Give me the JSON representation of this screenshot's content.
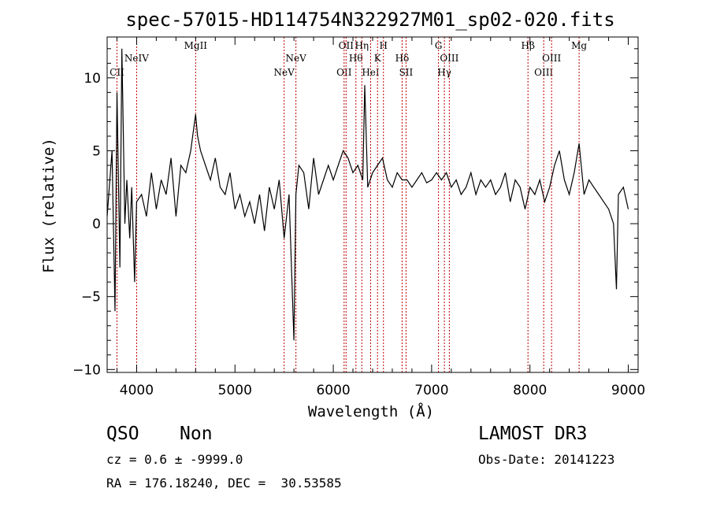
{
  "chart_data": {
    "type": "line",
    "title": "spec-57015-HD114754N322927M01_sp02-020.fits",
    "xlabel": "Wavelength (Å)",
    "ylabel": "Flux (relative)",
    "xlim": [
      3700,
      9100
    ],
    "ylim": [
      -10.2,
      12.8
    ],
    "xticks": [
      4000,
      5000,
      6000,
      7000,
      8000,
      9000
    ],
    "yticks": [
      -10,
      -5,
      0,
      5,
      10
    ],
    "grid": false,
    "series": [
      {
        "name": "spectrum",
        "x": [
          3700,
          3750,
          3780,
          3800,
          3830,
          3850,
          3880,
          3900,
          3930,
          3950,
          3980,
          4000,
          4050,
          4100,
          4150,
          4200,
          4250,
          4300,
          4350,
          4400,
          4450,
          4500,
          4550,
          4600,
          4620,
          4650,
          4700,
          4750,
          4800,
          4850,
          4900,
          4950,
          5000,
          5050,
          5100,
          5150,
          5200,
          5250,
          5300,
          5350,
          5400,
          5450,
          5500,
          5550,
          5600,
          5620,
          5650,
          5700,
          5750,
          5800,
          5850,
          5900,
          5950,
          6000,
          6050,
          6100,
          6150,
          6200,
          6250,
          6300,
          6320,
          6350,
          6400,
          6450,
          6500,
          6550,
          6600,
          6650,
          6700,
          6750,
          6800,
          6850,
          6900,
          6950,
          7000,
          7050,
          7100,
          7150,
          7200,
          7250,
          7300,
          7350,
          7400,
          7450,
          7500,
          7550,
          7600,
          7650,
          7700,
          7750,
          7800,
          7850,
          7900,
          7950,
          8000,
          8050,
          8100,
          8150,
          8200,
          8250,
          8300,
          8350,
          8400,
          8450,
          8500,
          8550,
          8600,
          8650,
          8700,
          8750,
          8800,
          8850,
          8880,
          8900,
          8950,
          9000
        ],
        "y": [
          0.5,
          5.0,
          -6.0,
          9.0,
          -3.0,
          12.0,
          0.0,
          3.0,
          -1.0,
          2.5,
          -4.0,
          1.5,
          2.0,
          0.5,
          3.5,
          1.0,
          3.0,
          2.0,
          4.5,
          0.5,
          4.0,
          3.5,
          5.0,
          7.5,
          6.0,
          5.0,
          4.0,
          3.0,
          4.5,
          2.5,
          2.0,
          3.5,
          1.0,
          2.0,
          0.5,
          1.5,
          0.0,
          2.0,
          -0.5,
          2.5,
          1.0,
          3.0,
          -1.0,
          2.0,
          -8.0,
          2.0,
          4.0,
          3.5,
          1.0,
          4.5,
          2.0,
          3.0,
          4.0,
          3.0,
          4.0,
          5.0,
          4.5,
          3.5,
          4.0,
          3.0,
          9.5,
          2.5,
          3.5,
          4.0,
          4.5,
          3.0,
          2.5,
          3.5,
          3.0,
          3.0,
          2.5,
          3.0,
          3.5,
          2.8,
          3.0,
          3.5,
          3.0,
          3.5,
          2.5,
          3.0,
          2.0,
          2.5,
          3.5,
          2.0,
          3.0,
          2.5,
          3.0,
          2.0,
          2.5,
          3.5,
          1.5,
          3.0,
          2.5,
          1.0,
          2.5,
          2.0,
          3.0,
          1.5,
          2.5,
          4.0,
          5.0,
          3.0,
          2.0,
          3.5,
          5.5,
          2.0,
          3.0,
          2.5,
          2.0,
          1.5,
          1.0,
          0.0,
          -4.5,
          2.0,
          2.5,
          1.0
        ]
      }
    ],
    "lines": [
      {
        "label": "CII",
        "wavelength": 3800,
        "row": 3
      },
      {
        "label": "NeIV",
        "wavelength": 4000,
        "row": 2
      },
      {
        "label": "MgII",
        "wavelength": 4600,
        "row": 1
      },
      {
        "label": "NeV",
        "wavelength": 5500,
        "row": 3
      },
      {
        "label": "NeV",
        "wavelength": 5620,
        "row": 2
      },
      {
        "label": "OII",
        "wavelength": 6110,
        "row": 3
      },
      {
        "label": "OII",
        "wavelength": 6130,
        "row": 1
      },
      {
        "label": "Hθ",
        "wavelength": 6230,
        "row": 2
      },
      {
        "label": "Hη",
        "wavelength": 6290,
        "row": 1
      },
      {
        "label": "HeI",
        "wavelength": 6380,
        "row": 3
      },
      {
        "label": "K",
        "wavelength": 6450,
        "row": 2
      },
      {
        "label": "H",
        "wavelength": 6510,
        "row": 1
      },
      {
        "label": "Hδ",
        "wavelength": 6700,
        "row": 2
      },
      {
        "label": "SII",
        "wavelength": 6740,
        "row": 3
      },
      {
        "label": "G",
        "wavelength": 7070,
        "row": 1
      },
      {
        "label": "Hγ",
        "wavelength": 7130,
        "row": 3
      },
      {
        "label": "OIII",
        "wavelength": 7180,
        "row": 2
      },
      {
        "label": "Hβ",
        "wavelength": 7980,
        "row": 1
      },
      {
        "label": "OIII",
        "wavelength": 8140,
        "row": 3
      },
      {
        "label": "OIII",
        "wavelength": 8220,
        "row": 2
      },
      {
        "label": "Mg",
        "wavelength": 8500,
        "row": 1
      }
    ]
  },
  "footer": {
    "class": "QSO",
    "subclass": "Non",
    "survey": "LAMOST DR3",
    "cz": "cz = 0.6 ± -9999.0",
    "obs_date": "Obs-Date: 20141223",
    "coords": "RA = 176.18240, DEC =  30.53585"
  },
  "colors": {
    "line_markers": "#c00000",
    "spectrum": "#000000"
  }
}
